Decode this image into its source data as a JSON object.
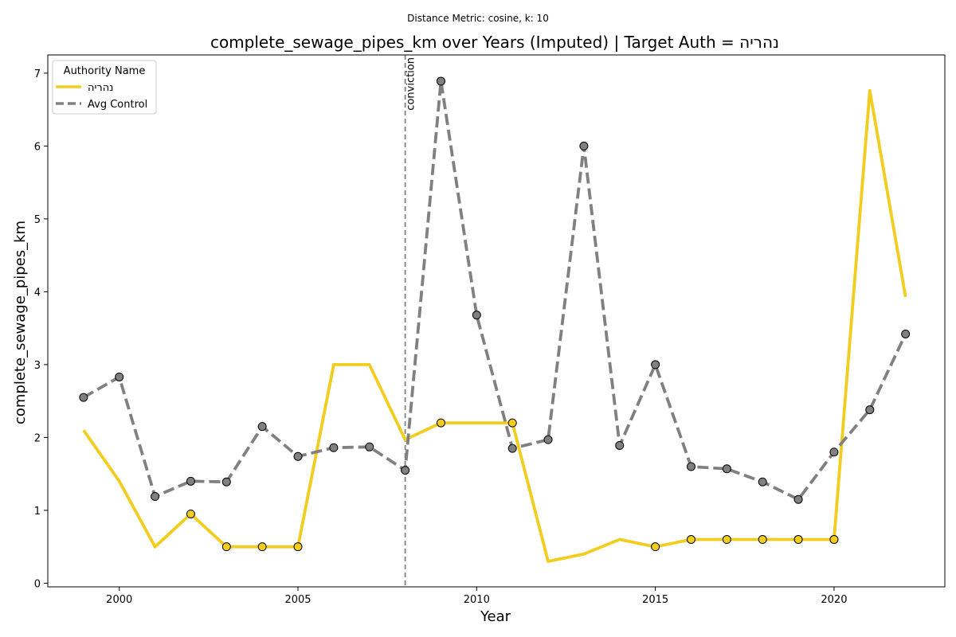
{
  "chart_data": {
    "type": "line",
    "suptitle": "Distance Metric: cosine, k: 10",
    "title": "complete_sewage_pipes_km over Years (Imputed) | Target Auth = נהריה",
    "xlabel": "Year",
    "ylabel": "complete_sewage_pipes_km",
    "xlim": [
      1998,
      2023.1
    ],
    "ylim": [
      -0.05,
      7.25
    ],
    "x_ticks": [
      2000,
      2005,
      2010,
      2015,
      2020
    ],
    "y_ticks": [
      0,
      1,
      2,
      3,
      4,
      5,
      6,
      7
    ],
    "grid": false,
    "legend": {
      "title": "Authority Name",
      "placement": "top-left",
      "entries": [
        "נהריה",
        "Avg Control"
      ]
    },
    "annotation": {
      "text": "conviction",
      "x": 2008
    },
    "x": [
      1999,
      2000,
      2001,
      2002,
      2003,
      2004,
      2005,
      2006,
      2007,
      2008,
      2009,
      2010,
      2011,
      2012,
      2013,
      2014,
      2015,
      2016,
      2017,
      2018,
      2019,
      2020,
      2021,
      2022
    ],
    "series": [
      {
        "name": "נהריה",
        "color": "#f2cd1d",
        "style": "solid",
        "values": [
          2.1,
          1.4,
          0.5,
          0.95,
          0.5,
          0.5,
          0.5,
          3.0,
          3.0,
          1.97,
          2.2,
          2.2,
          2.2,
          0.3,
          0.4,
          0.6,
          0.5,
          0.6,
          0.6,
          0.6,
          0.6,
          0.6,
          6.76,
          3.93
        ],
        "markers": [
          false,
          false,
          false,
          true,
          true,
          true,
          true,
          false,
          false,
          false,
          true,
          false,
          true,
          false,
          false,
          false,
          true,
          true,
          true,
          true,
          true,
          true,
          false,
          false
        ]
      },
      {
        "name": "Avg Control",
        "color": "#808080",
        "style": "dashed",
        "values": [
          2.55,
          2.83,
          1.19,
          1.4,
          1.39,
          2.15,
          1.74,
          1.86,
          1.87,
          1.55,
          6.89,
          3.68,
          1.85,
          1.97,
          6.0,
          1.89,
          3.0,
          1.6,
          1.57,
          1.39,
          1.15,
          1.8,
          2.38,
          3.42
        ],
        "markers": [
          true,
          true,
          true,
          true,
          true,
          true,
          true,
          true,
          true,
          true,
          true,
          true,
          true,
          true,
          true,
          true,
          true,
          true,
          true,
          true,
          true,
          true,
          true,
          true
        ]
      }
    ]
  }
}
